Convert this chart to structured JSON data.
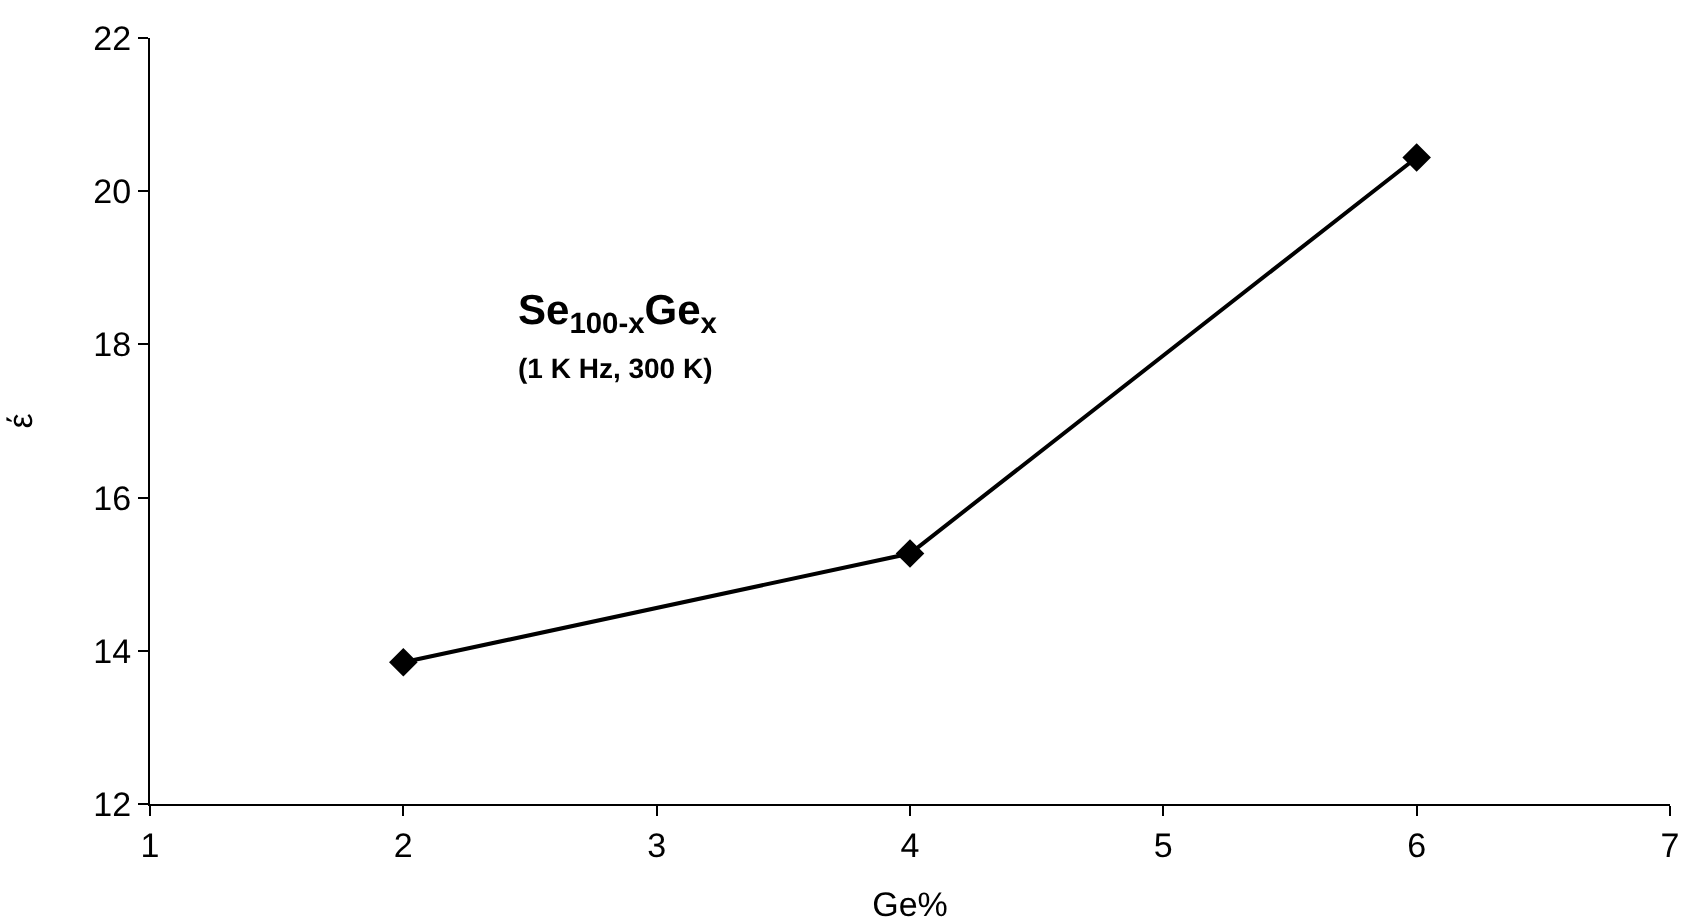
{
  "chart_data": {
    "type": "line",
    "xlabel": "Ge%",
    "ylabel": "έ",
    "annotations": [
      "Se$_{100-x}$Ge$_{x}$",
      "(1 K Hz, 300 K)"
    ],
    "x": [
      2,
      4,
      6
    ],
    "series": [
      {
        "color": "#000000",
        "values": [
          13.85,
          15.27,
          20.44
        ]
      }
    ],
    "xlim": [
      1,
      7
    ],
    "xticks": [
      1,
      2,
      3,
      4,
      5,
      6,
      7
    ],
    "ylim": [
      12,
      22
    ],
    "yticks": [
      12,
      14,
      16,
      18,
      20,
      22
    ],
    "grid": false,
    "legend": false,
    "marker": "diamond",
    "line_style": "solid"
  }
}
